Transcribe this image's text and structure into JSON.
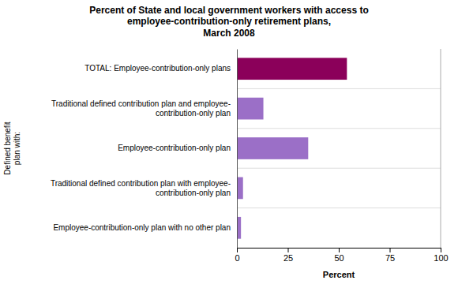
{
  "chart_data": {
    "type": "bar",
    "orientation": "horizontal",
    "title": "Percent of State and local government workers with access to\nemployee-contribution-only retirement plans,\nMarch 2008",
    "categories": [
      "Employee-contribution-only plan with no other plan",
      "Traditional defined contribution plan with employee-\ncontribution-only plan",
      "Employee-contribution-only plan",
      "Traditional defined contribution plan and employee-\ncontribution-only plan",
      "TOTAL: Employee-contribution-only plans"
    ],
    "values": [
      2,
      3,
      35,
      13,
      54
    ],
    "colors": [
      "#9b6fc7",
      "#9b6fc7",
      "#9b6fc7",
      "#9b6fc7",
      "#8b005a"
    ],
    "xlabel": "Percent",
    "ylabel": "Defined benefit\nplan with:",
    "xlim": [
      0,
      100
    ],
    "xticks": [
      0,
      25,
      50,
      75,
      100
    ],
    "grid": false
  }
}
